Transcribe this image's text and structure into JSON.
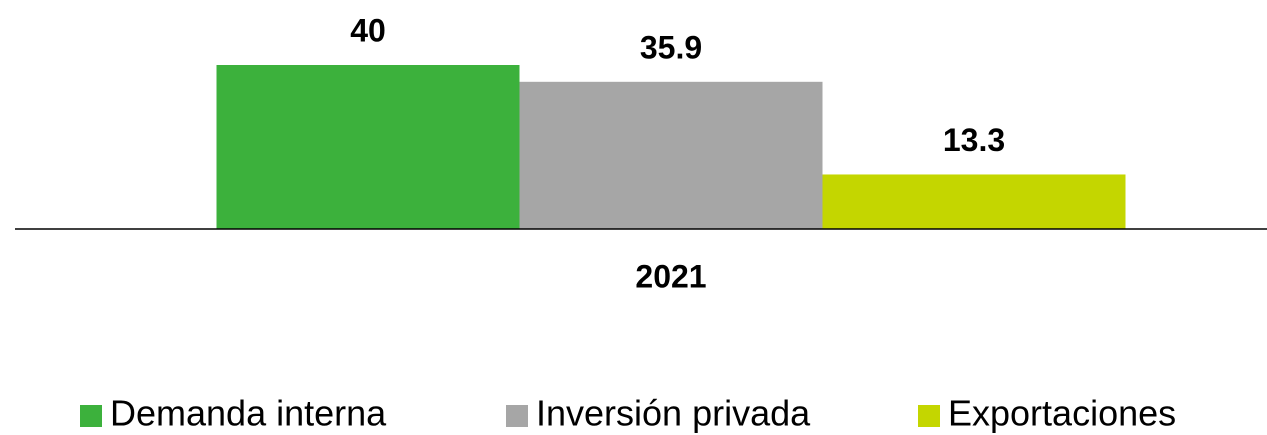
{
  "chart_data": {
    "type": "bar",
    "categories": [
      "2021"
    ],
    "series": [
      {
        "name": "Demanda interna",
        "color": "#3cb13c",
        "values": [
          40
        ]
      },
      {
        "name": "Inversión privada",
        "color": "#a6a6a6",
        "values": [
          35.9
        ]
      },
      {
        "name": "Exportaciones",
        "color": "#c4d600",
        "values": [
          13.3
        ]
      }
    ],
    "ylim": [
      0,
      40
    ],
    "legend": "bottom"
  }
}
